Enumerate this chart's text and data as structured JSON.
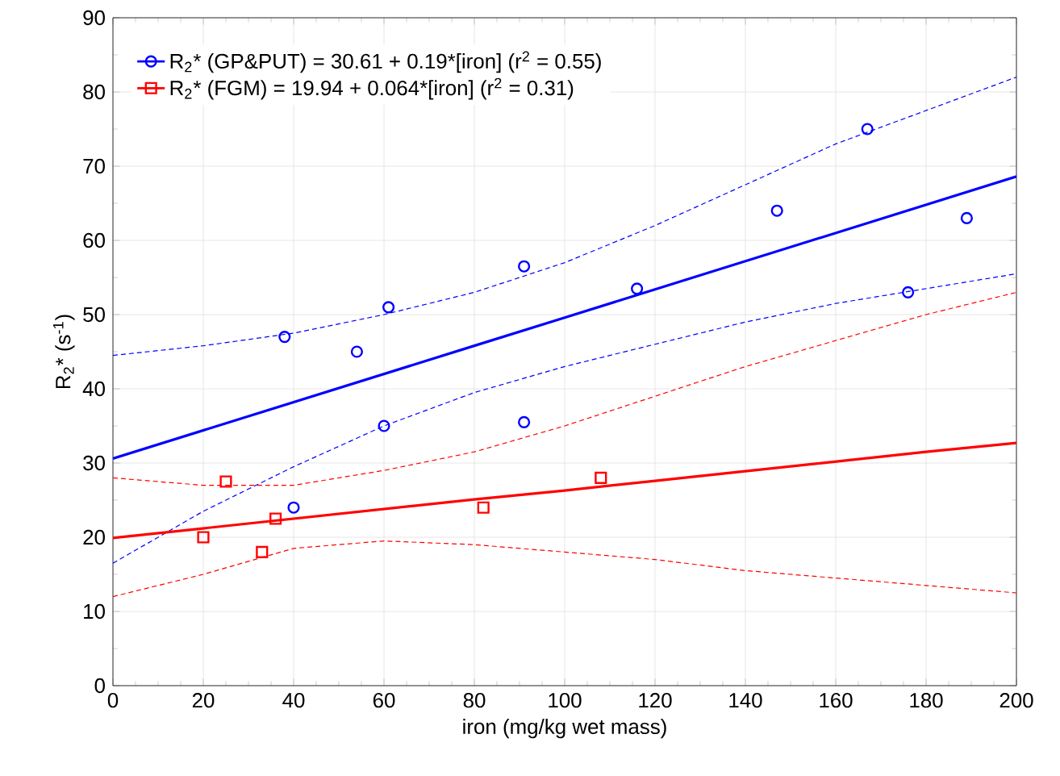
{
  "chart_data": {
    "type": "scatter",
    "xlabel": "iron (mg/kg wet mass)",
    "ylabel": "R$_{2}$* (s$^{-1}$)",
    "xlim": [
      0,
      200
    ],
    "xticks": [
      0,
      20,
      40,
      60,
      80,
      100,
      120,
      140,
      160,
      180,
      200
    ],
    "ylim": [
      0,
      90
    ],
    "yticks": [
      0,
      10,
      20,
      30,
      40,
      50,
      60,
      70,
      80,
      90
    ],
    "grid": true,
    "legend": "top left",
    "series": [
      {
        "name": "R$_{2}$* (GP&PUT) = 30.61 + 0.19*[iron]   (r$^{2}$ = 0.55)",
        "color": "#0000ff",
        "marker": "circle",
        "x": [
          38,
          54,
          61,
          60,
          40,
          91,
          91,
          116,
          147,
          167,
          176,
          189
        ],
        "values": [
          47,
          45,
          51,
          35,
          24,
          56.5,
          35.5,
          53.5,
          64,
          75,
          53,
          63
        ]
      },
      {
        "type": "line",
        "color": "#0000ff",
        "x": [
          0,
          20,
          40,
          60,
          80,
          100,
          120,
          140,
          160,
          180,
          200
        ],
        "values": [
          30.6,
          34.4,
          38.2,
          42.0,
          45.8,
          49.6,
          53.4,
          57.2,
          61.0,
          64.8,
          68.6
        ]
      },
      {
        "type": "line",
        "line_style": "dashed",
        "color": "#0000ff",
        "x": [
          0,
          20,
          40,
          60,
          80,
          100,
          120,
          140,
          160,
          180,
          200
        ],
        "values": [
          44.5,
          45.8,
          47.5,
          50,
          53,
          57,
          62,
          67.5,
          73,
          77.5,
          82
        ]
      },
      {
        "type": "line",
        "line_style": "dashed",
        "color": "#0000ff",
        "x": [
          0,
          20,
          40,
          60,
          80,
          100,
          120,
          140,
          160,
          180,
          200
        ],
        "values": [
          16.5,
          23.5,
          29.5,
          35,
          39.5,
          43,
          46,
          49,
          51.5,
          53.5,
          55.5
        ]
      },
      {
        "name": "R$_{2}$* (FGM) = 19.94 + 0.064*[iron]   (r$^{2}$ = 0.31)",
        "color": "#ff0000",
        "marker": "square",
        "x": [
          20,
          25,
          33,
          36,
          82,
          108
        ],
        "values": [
          20,
          27.5,
          18,
          22.5,
          24,
          28
        ]
      },
      {
        "type": "line",
        "color": "#ff0000",
        "x": [
          0,
          20,
          40,
          60,
          80,
          100,
          120,
          140,
          160,
          180,
          200
        ],
        "values": [
          19.9,
          21.2,
          22.5,
          23.8,
          25.1,
          26.3,
          27.6,
          28.9,
          30.2,
          31.5,
          32.7
        ]
      },
      {
        "type": "line",
        "line_style": "dashed",
        "color": "#ff0000",
        "x": [
          0,
          20,
          40,
          60,
          80,
          100,
          120,
          140,
          160,
          180,
          200
        ],
        "values": [
          28,
          27,
          27,
          29,
          31.5,
          35,
          39,
          43,
          46.5,
          50,
          53
        ]
      },
      {
        "type": "line",
        "line_style": "dashed",
        "color": "#ff0000",
        "x": [
          0,
          20,
          40,
          60,
          80,
          100,
          120,
          140,
          160,
          180,
          200
        ],
        "values": [
          12,
          15,
          18.5,
          19.5,
          19,
          18,
          17,
          15.5,
          14.5,
          13.5,
          12.5
        ]
      }
    ]
  }
}
